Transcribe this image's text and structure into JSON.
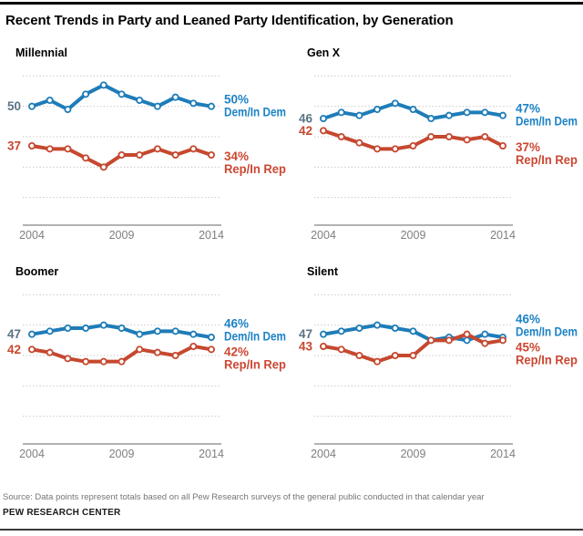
{
  "page": {
    "title": "Recent Trends in Party and Leaned Party Identification, by Generation",
    "source": "Source: Data points represent totals based on all Pew Research surveys of the general public conducted in that calendar year",
    "branding": "PEW RESEARCH CENTER"
  },
  "colors": {
    "dem_line": "#1e7cb8",
    "rep_line": "#c5482f",
    "dem_end_label": "#1d82c6",
    "rep_end_label": "#cc4732",
    "dem_start_label": "#5a7484",
    "grid": "#c3c3c3",
    "axis": "#999999",
    "year_label": "#7f7f7f"
  },
  "chart_data": [
    {
      "type": "line",
      "title": "Millennial",
      "x": [
        2004,
        2005,
        2006,
        2007,
        2008,
        2009,
        2010,
        2011,
        2012,
        2013,
        2014
      ],
      "xticks": [
        "2004",
        "2009",
        "2014"
      ],
      "ylim": [
        20,
        60
      ],
      "grid_values": [
        60,
        50,
        40,
        30,
        20
      ],
      "series": [
        {
          "name": "Dem/In Dem",
          "color": "#1e7cb8",
          "values": [
            50,
            52,
            49,
            54,
            57,
            54,
            52,
            50,
            53,
            51,
            50
          ],
          "start_label": "50",
          "start_color": "#5a7484",
          "end_pct": "50%",
          "end_name": "Dem/In Dem",
          "label_color": "#1d82c6"
        },
        {
          "name": "Rep/In Rep",
          "color": "#c5482f",
          "values": [
            37,
            36,
            36,
            33,
            30,
            34,
            34,
            36,
            34,
            36,
            34
          ],
          "start_label": "37",
          "start_color": "#c5482f",
          "end_pct": "34%",
          "end_name": "Rep/In Rep",
          "label_color": "#cc4732"
        }
      ]
    },
    {
      "type": "line",
      "title": "Gen X",
      "x": [
        2004,
        2005,
        2006,
        2007,
        2008,
        2009,
        2010,
        2011,
        2012,
        2013,
        2014
      ],
      "xticks": [
        "2004",
        "2009",
        "2014"
      ],
      "ylim": [
        20,
        60
      ],
      "grid_values": [
        60,
        50,
        40,
        30,
        20
      ],
      "series": [
        {
          "name": "Dem/In Dem",
          "color": "#1e7cb8",
          "values": [
            46,
            48,
            47,
            49,
            51,
            49,
            46,
            47,
            48,
            48,
            47
          ],
          "start_label": "46",
          "start_color": "#5a7484",
          "end_pct": "47%",
          "end_name": "Dem/In Dem",
          "label_color": "#1d82c6"
        },
        {
          "name": "Rep/In Rep",
          "color": "#c5482f",
          "values": [
            42,
            40,
            38,
            36,
            36,
            37,
            40,
            40,
            39,
            40,
            37
          ],
          "start_label": "42",
          "start_color": "#c5482f",
          "end_pct": "37%",
          "end_name": "Rep/In Rep",
          "label_color": "#cc4732"
        }
      ]
    },
    {
      "type": "line",
      "title": "Boomer",
      "x": [
        2004,
        2005,
        2006,
        2007,
        2008,
        2009,
        2010,
        2011,
        2012,
        2013,
        2014
      ],
      "xticks": [
        "2004",
        "2009",
        "2014"
      ],
      "ylim": [
        20,
        60
      ],
      "grid_values": [
        60,
        50,
        40,
        30,
        20
      ],
      "series": [
        {
          "name": "Dem/In Dem",
          "color": "#1e7cb8",
          "values": [
            47,
            48,
            49,
            49,
            50,
            49,
            47,
            48,
            48,
            47,
            46
          ],
          "start_label": "47",
          "start_color": "#5a7484",
          "end_pct": "46%",
          "end_name": "Dem/In Dem",
          "label_color": "#1d82c6"
        },
        {
          "name": "Rep/In Rep",
          "color": "#c5482f",
          "values": [
            42,
            41,
            39,
            38,
            38,
            38,
            42,
            41,
            40,
            43,
            42
          ],
          "start_label": "42",
          "start_color": "#c5482f",
          "end_pct": "42%",
          "end_name": "Rep/In Rep",
          "label_color": "#cc4732"
        }
      ]
    },
    {
      "type": "line",
      "title": "Silent",
      "x": [
        2004,
        2005,
        2006,
        2007,
        2008,
        2009,
        2010,
        2011,
        2012,
        2013,
        2014
      ],
      "xticks": [
        "2004",
        "2009",
        "2014"
      ],
      "ylim": [
        20,
        60
      ],
      "grid_values": [
        60,
        50,
        40,
        30,
        20
      ],
      "series": [
        {
          "name": "Dem/In Dem",
          "color": "#1e7cb8",
          "values": [
            47,
            48,
            49,
            50,
            49,
            48,
            45,
            46,
            45,
            47,
            46
          ],
          "start_label": "47",
          "start_color": "#5a7484",
          "end_pct": "46%",
          "end_name": "Dem/In Dem",
          "label_color": "#1d82c6"
        },
        {
          "name": "Rep/In Rep",
          "color": "#c5482f",
          "values": [
            43,
            42,
            40,
            38,
            40,
            40,
            45,
            45,
            47,
            44,
            45
          ],
          "start_label": "43",
          "start_color": "#c5482f",
          "end_pct": "45%",
          "end_name": "Rep/In Rep",
          "label_color": "#cc4732"
        }
      ]
    }
  ]
}
